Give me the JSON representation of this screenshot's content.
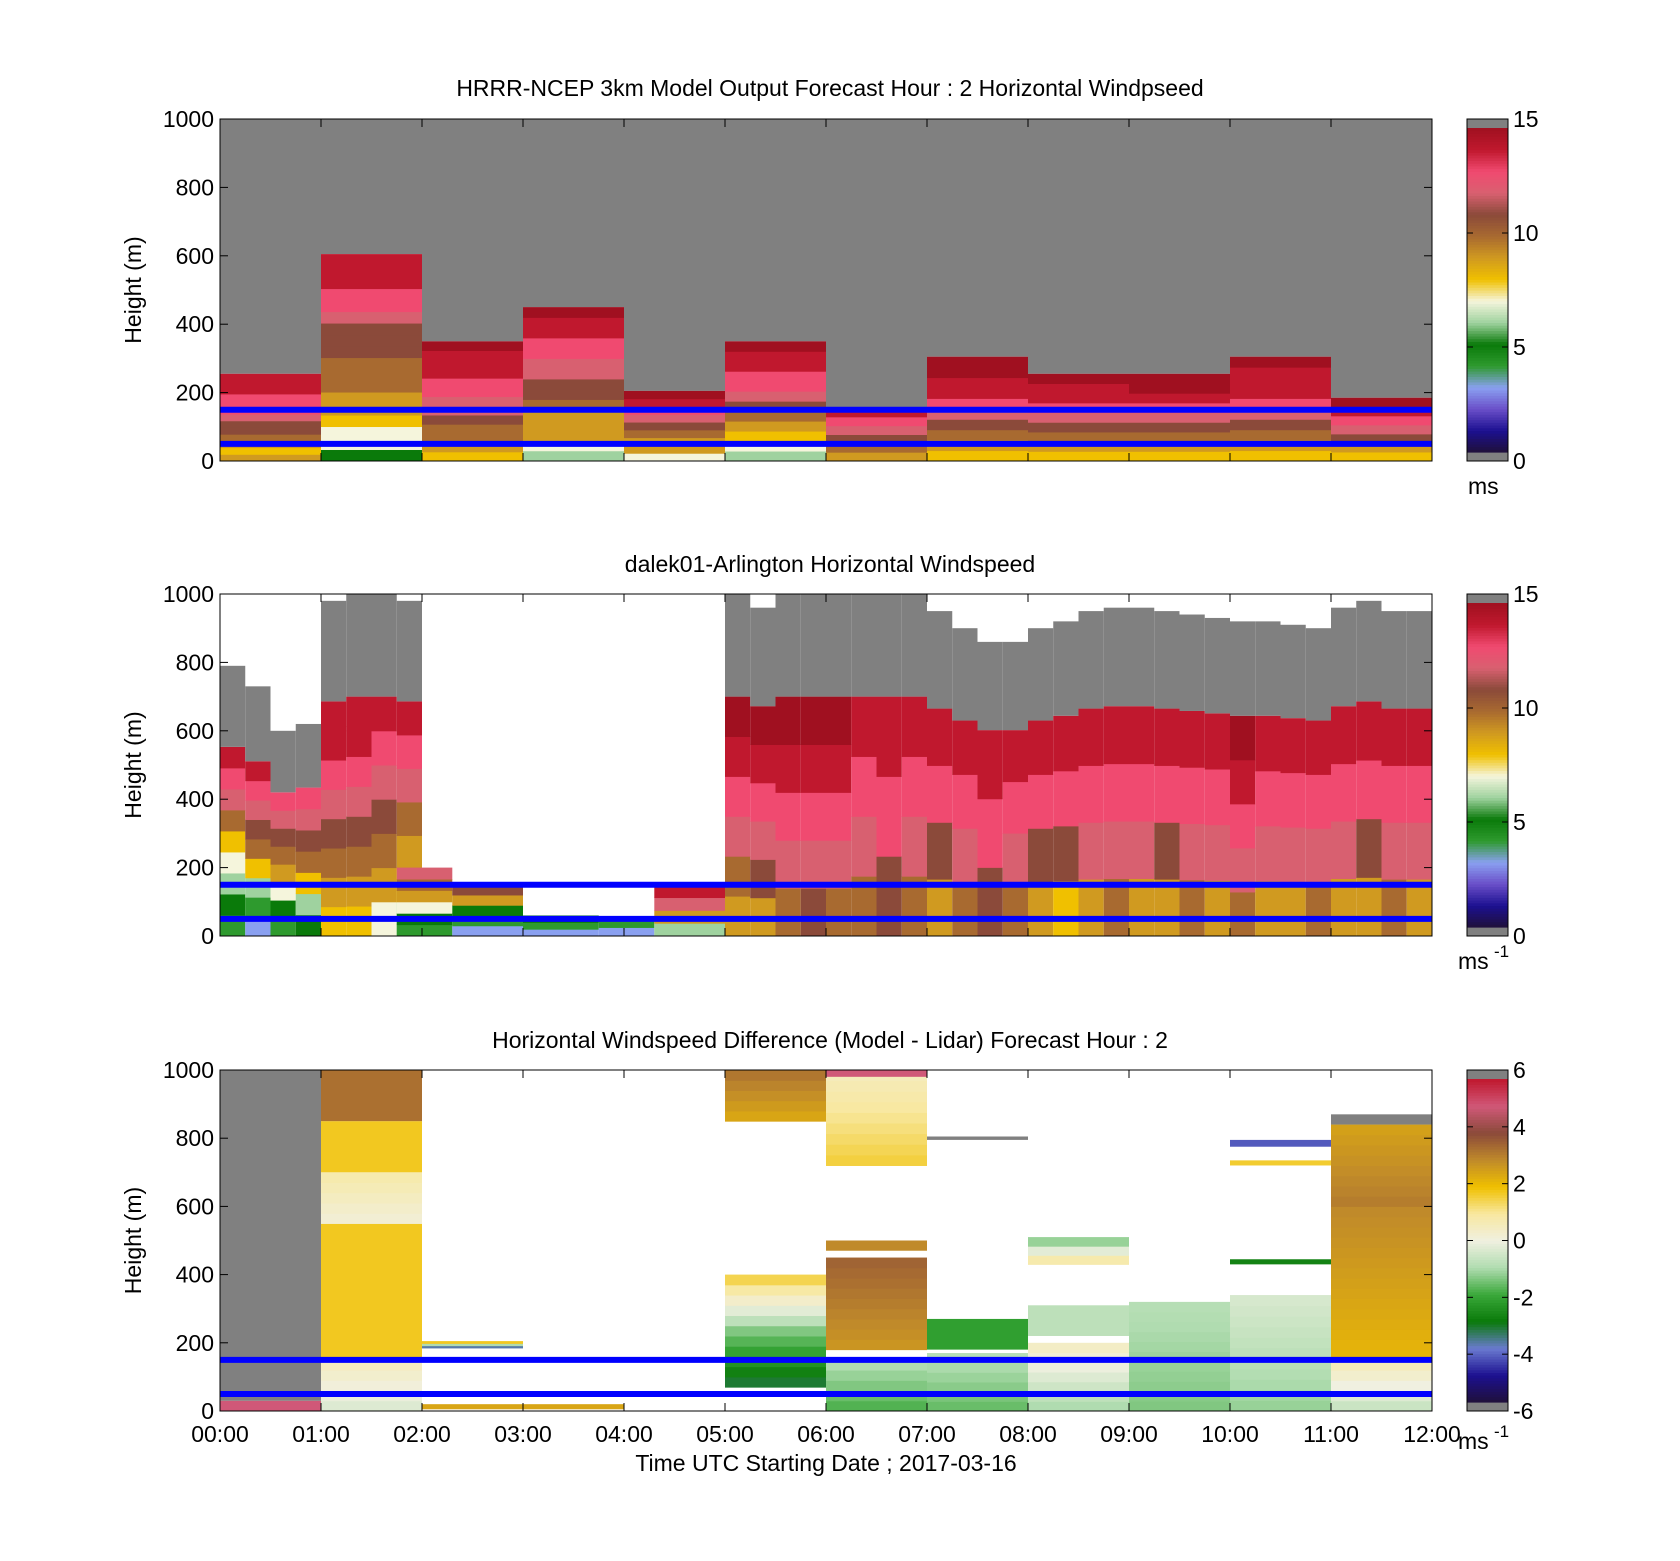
{
  "chart_data": [
    {
      "type": "heatmap",
      "title": "HRRR-NCEP 3km Model Output   Forecast Hour : 2 Horizontal Windpseed",
      "xlabel": "",
      "ylabel": "Height (m)",
      "xlim": [
        0,
        12
      ],
      "ylim": [
        0,
        1000
      ],
      "yticks": [
        "0",
        "200",
        "400",
        "600",
        "800",
        "1000"
      ],
      "colorbar": {
        "min": 0,
        "max": 15,
        "ticks": [
          "0",
          "5",
          "10",
          "15"
        ],
        "unit": "ms",
        "unit_sup": ""
      },
      "reference_lines_m": [
        150,
        50
      ],
      "columns": [
        {
          "time": "00:00",
          "top": 255,
          "profile": [
            9,
            8,
            9,
            10,
            11,
            11,
            12,
            13,
            13,
            13,
            14,
            14,
            14
          ]
        },
        {
          "time": "01:00",
          "top": 605,
          "profile": [
            5,
            7,
            7,
            8,
            9,
            9,
            10,
            10,
            10,
            11,
            11,
            11,
            12,
            13,
            13,
            14,
            14,
            14
          ]
        },
        {
          "time": "02:00",
          "top": 350,
          "profile": [
            8,
            9,
            10,
            10,
            11,
            12,
            12,
            13,
            13,
            14,
            14,
            14,
            15
          ]
        },
        {
          "time": "03:00",
          "top": 450,
          "profile": [
            6,
            7,
            9,
            9,
            9,
            10,
            11,
            11,
            12,
            12,
            13,
            13,
            14,
            14,
            15
          ]
        },
        {
          "time": "04:00",
          "top": 205,
          "profile": [
            7,
            9,
            9,
            10,
            11,
            12,
            13,
            14,
            15
          ]
        },
        {
          "time": "05:00",
          "top": 350,
          "profile": [
            6,
            7,
            8,
            9,
            10,
            11,
            12,
            13,
            13,
            14,
            14,
            15
          ]
        },
        {
          "time": "06:00",
          "top": 155,
          "profile": [
            9,
            10,
            11,
            12,
            13,
            14
          ]
        },
        {
          "time": "07:00",
          "top": 305,
          "profile": [
            8,
            9,
            10,
            11,
            12,
            13,
            14,
            14,
            15,
            15
          ]
        },
        {
          "time": "08:00",
          "top": 255,
          "profile": [
            8,
            9,
            10,
            11,
            12,
            13,
            14,
            14,
            15
          ]
        },
        {
          "time": "09:00",
          "top": 255,
          "profile": [
            8,
            9,
            10,
            11,
            12,
            13,
            14,
            15,
            15
          ]
        },
        {
          "time": "10:00",
          "top": 305,
          "profile": [
            8,
            9,
            10,
            11,
            12,
            13,
            14,
            14,
            14,
            15
          ]
        },
        {
          "time": "11:00",
          "top": 185,
          "profile": [
            8,
            9,
            11,
            12,
            13,
            14,
            15
          ]
        }
      ]
    },
    {
      "type": "heatmap",
      "title": "dalek01-Arlington  Horizontal Windspeed",
      "xlabel": "",
      "ylabel": "Height (m)",
      "xlim": [
        0,
        12
      ],
      "ylim": [
        0,
        1000
      ],
      "yticks": [
        "0",
        "200",
        "400",
        "600",
        "800",
        "1000"
      ],
      "colorbar": {
        "min": 0,
        "max": 15,
        "ticks": [
          "0",
          "5",
          "10",
          "15"
        ],
        "unit": "ms",
        "unit_sup": "-1"
      },
      "reference_lines_m": [
        150,
        50
      ],
      "subcolumns": [
        {
          "t": 0.0,
          "top": 790,
          "profile": [
            4,
            5,
            6,
            7,
            8,
            10,
            12,
            13,
            14
          ]
        },
        {
          "t": 0.25,
          "top": 730,
          "profile": [
            3,
            4,
            6,
            8,
            10,
            11,
            12,
            13,
            14
          ]
        },
        {
          "t": 0.5,
          "top": 600,
          "profile": [
            4,
            5,
            7,
            9,
            10,
            11,
            12,
            13
          ]
        },
        {
          "t": 0.75,
          "top": 620,
          "profile": [
            5,
            6,
            8,
            10,
            11,
            12,
            13
          ]
        },
        {
          "t": 1.0,
          "top": 980,
          "profile": [
            8,
            9,
            10,
            11,
            12,
            13,
            14,
            14
          ]
        },
        {
          "t": 1.25,
          "top": 1000,
          "profile": [
            8,
            9,
            10,
            11,
            12,
            13,
            14,
            14
          ]
        },
        {
          "t": 1.5,
          "top": 1000,
          "profile": [
            7,
            9,
            10,
            11,
            12,
            13,
            14
          ]
        },
        {
          "t": 1.75,
          "top": 980,
          "profile": [
            6,
            8,
            9,
            10,
            12,
            13,
            14
          ]
        },
        {
          "t": 5.0,
          "top": 1000,
          "profile": [
            9,
            10,
            12,
            13,
            14,
            15
          ]
        },
        {
          "t": 5.25,
          "top": 960,
          "profile": [
            9,
            11,
            12,
            13,
            14,
            15
          ]
        },
        {
          "t": 5.5,
          "top": 1000,
          "profile": [
            10,
            12,
            13,
            14,
            15
          ]
        },
        {
          "t": 5.75,
          "top": 1000,
          "profile": [
            11,
            12,
            13,
            14,
            15
          ]
        },
        {
          "t": 6.0,
          "top": 1000,
          "profile": [
            10,
            12,
            13,
            14,
            15
          ]
        },
        {
          "t": 6.25,
          "top": 1000,
          "profile": [
            10,
            12,
            13,
            14
          ]
        },
        {
          "t": 6.5,
          "top": 1000,
          "profile": [
            11,
            13,
            14
          ]
        },
        {
          "t": 6.75,
          "top": 1000,
          "profile": [
            10,
            12,
            13,
            14
          ]
        },
        {
          "t": 7.0,
          "top": 950,
          "profile": [
            9,
            11,
            13,
            14
          ]
        },
        {
          "t": 7.25,
          "top": 900,
          "profile": [
            10,
            12,
            13,
            14
          ]
        },
        {
          "t": 7.5,
          "top": 860,
          "profile": [
            11,
            13,
            14
          ]
        },
        {
          "t": 7.75,
          "top": 860,
          "profile": [
            10,
            12,
            13,
            14
          ]
        },
        {
          "t": 8.0,
          "top": 900,
          "profile": [
            9,
            11,
            13,
            14
          ]
        },
        {
          "t": 8.25,
          "top": 920,
          "profile": [
            8,
            11,
            13,
            14
          ]
        },
        {
          "t": 8.5,
          "top": 950,
          "profile": [
            9,
            12,
            13,
            14
          ]
        },
        {
          "t": 8.75,
          "top": 960,
          "profile": [
            10,
            12,
            13,
            14
          ]
        },
        {
          "t": 9.0,
          "top": 960,
          "profile": [
            9,
            12,
            13,
            14
          ]
        },
        {
          "t": 9.25,
          "top": 950,
          "profile": [
            9,
            11,
            13,
            14
          ]
        },
        {
          "t": 9.5,
          "top": 940,
          "profile": [
            10,
            12,
            13,
            14
          ]
        },
        {
          "t": 9.75,
          "top": 930,
          "profile": [
            9,
            12,
            13,
            14
          ]
        },
        {
          "t": 10.0,
          "top": 920,
          "profile": [
            10,
            12,
            13,
            14,
            15
          ]
        },
        {
          "t": 10.25,
          "top": 920,
          "profile": [
            9,
            12,
            13,
            14
          ]
        },
        {
          "t": 10.5,
          "top": 910,
          "profile": [
            9,
            12,
            13,
            14
          ]
        },
        {
          "t": 10.75,
          "top": 900,
          "profile": [
            10,
            12,
            13,
            14
          ]
        },
        {
          "t": 11.0,
          "top": 960,
          "profile": [
            9,
            12,
            13,
            14
          ]
        },
        {
          "t": 11.25,
          "top": 980,
          "profile": [
            9,
            11,
            13,
            14
          ]
        },
        {
          "t": 11.5,
          "top": 950,
          "profile": [
            10,
            12,
            13,
            14
          ]
        },
        {
          "t": 11.75,
          "top": 950,
          "profile": [
            9,
            12,
            13,
            14
          ]
        }
      ],
      "sparse_blocks": [
        {
          "t0": 1.75,
          "t1": 2.3,
          "top": 200,
          "profile": [
            4,
            5,
            7,
            9,
            10,
            12
          ]
        },
        {
          "t0": 2.3,
          "t1": 3.0,
          "top": 150,
          "profile": [
            3,
            4,
            5,
            9,
            11
          ]
        },
        {
          "t0": 3.0,
          "t1": 3.75,
          "top": 60,
          "profile": [
            3,
            4,
            5
          ]
        },
        {
          "t0": 3.75,
          "t1": 4.3,
          "top": 50,
          "profile": [
            3,
            4
          ]
        },
        {
          "t0": 4.3,
          "t1": 5.0,
          "top": 150,
          "profile": [
            6,
            9,
            12,
            14
          ]
        }
      ]
    },
    {
      "type": "heatmap",
      "title": "Horizontal Windspeed Difference (Model - Lidar) Forecast Hour : 2",
      "xlabel": "Time UTC  Starting Date ; 2017-03-16",
      "ylabel": "Height (m)",
      "xlim": [
        0,
        12
      ],
      "ylim": [
        0,
        1000
      ],
      "xticks": [
        "00:00",
        "01:00",
        "02:00",
        "03:00",
        "04:00",
        "05:00",
        "06:00",
        "07:00",
        "08:00",
        "09:00",
        "10:00",
        "11:00",
        "12:00"
      ],
      "yticks": [
        "0",
        "200",
        "400",
        "600",
        "800",
        "1000"
      ],
      "colorbar": {
        "min": -6,
        "max": 6,
        "ticks": [
          "-6",
          "-4",
          "-2",
          "0",
          "2",
          "4",
          "6"
        ],
        "unit": "ms",
        "unit_sup": "-1"
      },
      "reference_lines_m": [
        150,
        50
      ],
      "segments": [
        {
          "t0": 0,
          "t1": 1,
          "bottom": 0,
          "top": 30,
          "value": 5
        },
        {
          "t0": 0,
          "t1": 1,
          "bottom": 30,
          "top": 1000,
          "value": "nan"
        },
        {
          "t0": 1,
          "t1": 2,
          "bottom": 0,
          "top": 150,
          "value": -0.3,
          "alt": 0.5
        },
        {
          "t0": 1,
          "t1": 2,
          "bottom": 150,
          "top": 550,
          "value": 1.8
        },
        {
          "t0": 1,
          "t1": 2,
          "bottom": 550,
          "top": 700,
          "value": 0.2,
          "alt": 0.8
        },
        {
          "t0": 1,
          "t1": 2,
          "bottom": 700,
          "top": 850,
          "value": 1.8
        },
        {
          "t0": 1,
          "t1": 2,
          "bottom": 850,
          "top": 1000,
          "value": 3.4
        },
        {
          "t0": 2,
          "t1": 3,
          "bottom": 185,
          "top": 205,
          "value": -3.8,
          "alt": 1.8
        },
        {
          "t0": 2,
          "t1": 4,
          "bottom": 5,
          "top": 20,
          "value": 2.5
        },
        {
          "t0": 5,
          "t1": 6,
          "bottom": 70,
          "top": 250,
          "value": -3.2,
          "alt": -1.4
        },
        {
          "t0": 5,
          "t1": 6,
          "bottom": 250,
          "top": 400,
          "value": -0.8,
          "alt": 1.5
        },
        {
          "t0": 5,
          "t1": 6,
          "bottom": 850,
          "top": 1000,
          "value": 2.5,
          "alt": 3.3
        },
        {
          "t0": 6,
          "t1": 7,
          "bottom": 0,
          "top": 150,
          "value": -1.8,
          "alt": -1.0
        },
        {
          "t0": 6,
          "t1": 7,
          "bottom": 180,
          "top": 450,
          "value": 2.8,
          "alt": 3.6
        },
        {
          "t0": 6,
          "t1": 7,
          "bottom": 470,
          "top": 500,
          "value": 3.0
        },
        {
          "t0": 6,
          "t1": 7,
          "bottom": 720,
          "top": 1000,
          "value": 1.6,
          "alt": 0.6
        },
        {
          "t0": 6,
          "t1": 7,
          "bottom": 980,
          "top": 1000,
          "value": 5
        },
        {
          "t0": 7,
          "t1": 8,
          "bottom": 0,
          "top": 170,
          "value": -1.6,
          "alt": -0.9
        },
        {
          "t0": 7,
          "t1": 8,
          "bottom": 180,
          "top": 270,
          "value": -2.2
        },
        {
          "t0": 7,
          "t1": 8,
          "bottom": 795,
          "top": 805,
          "value": "nan"
        },
        {
          "t0": 8,
          "t1": 9,
          "bottom": 0,
          "top": 200,
          "value": -1.0,
          "alt": 0.4
        },
        {
          "t0": 8,
          "t1": 9,
          "bottom": 220,
          "top": 310,
          "value": -0.8
        },
        {
          "t0": 8,
          "t1": 9,
          "bottom": 430,
          "top": 510,
          "value": 0.8,
          "alt": -1.2
        },
        {
          "t0": 9,
          "t1": 10,
          "bottom": 0,
          "top": 320,
          "value": -1.4,
          "alt": -0.9
        },
        {
          "t0": 10,
          "t1": 11,
          "bottom": 0,
          "top": 340,
          "value": -1.2,
          "alt": -0.4
        },
        {
          "t0": 10,
          "t1": 11,
          "bottom": 430,
          "top": 445,
          "value": -2.8
        },
        {
          "t0": 10,
          "t1": 11,
          "bottom": 720,
          "top": 735,
          "value": 1.7
        },
        {
          "t0": 10,
          "t1": 11,
          "bottom": 775,
          "top": 795,
          "value": -4.3
        },
        {
          "t0": 11,
          "t1": 12,
          "bottom": 0,
          "top": 150,
          "value": -0.6,
          "alt": 0.6
        },
        {
          "t0": 11,
          "t1": 12,
          "bottom": 150,
          "top": 600,
          "value": 2.2,
          "alt": 3.0
        },
        {
          "t0": 11,
          "t1": 12,
          "bottom": 600,
          "top": 840,
          "value": 3.2,
          "alt": 2.6
        },
        {
          "t0": 11,
          "t1": 12,
          "bottom": 840,
          "top": 870,
          "value": "nan"
        }
      ]
    }
  ],
  "colors": {
    "missing": "#808080",
    "reference_line": "#0000ff",
    "speed_colormap": [
      "#20103a",
      "#1c1090",
      "#6a4fc8",
      "#8aa0f0",
      "#2e9a2e",
      "#0a7a0a",
      "#9fd29f",
      "#f5f5dc",
      "#f0c000",
      "#d09a20",
      "#a86a30",
      "#8b4a3a",
      "#d86070",
      "#f04a70",
      "#c0182e",
      "#a01020"
    ],
    "diff_colormap": [
      "#20103a",
      "#1c1090",
      "#6a7ad0",
      "#0a7a0a",
      "#3aa83a",
      "#b0dcb0",
      "#f0f0e0",
      "#f8e8a0",
      "#f0c000",
      "#c08a2a",
      "#8b4a3a",
      "#d05878",
      "#c0182e"
    ]
  }
}
